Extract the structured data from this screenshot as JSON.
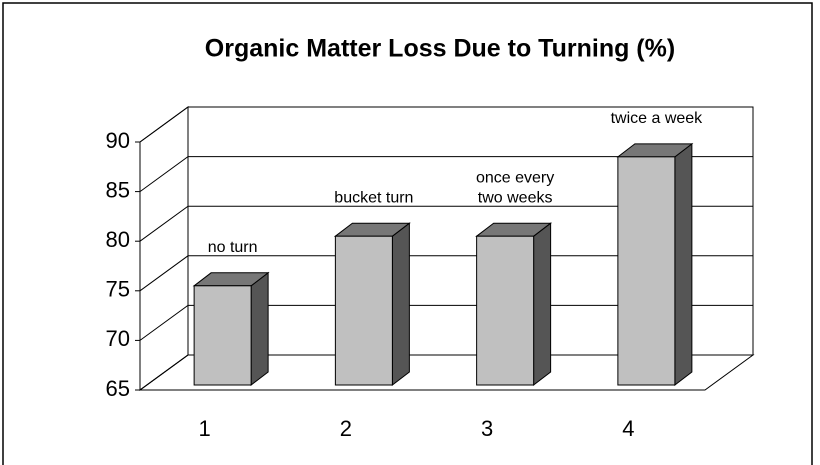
{
  "chart_data": {
    "type": "bar3d",
    "title": "Organic Matter Loss Due to Turning (%)",
    "categories": [
      "1",
      "2",
      "3",
      "4"
    ],
    "values": [
      75,
      80,
      80,
      88
    ],
    "annotations": [
      [
        "no turn"
      ],
      [
        "bucket turn"
      ],
      [
        "once every",
        "two weeks"
      ],
      [
        "twice a week"
      ]
    ],
    "color": "#c0c0c0",
    "ylim": [
      65,
      90
    ],
    "yticks": [
      65,
      70,
      75,
      80,
      85,
      90
    ],
    "grid": true
  }
}
